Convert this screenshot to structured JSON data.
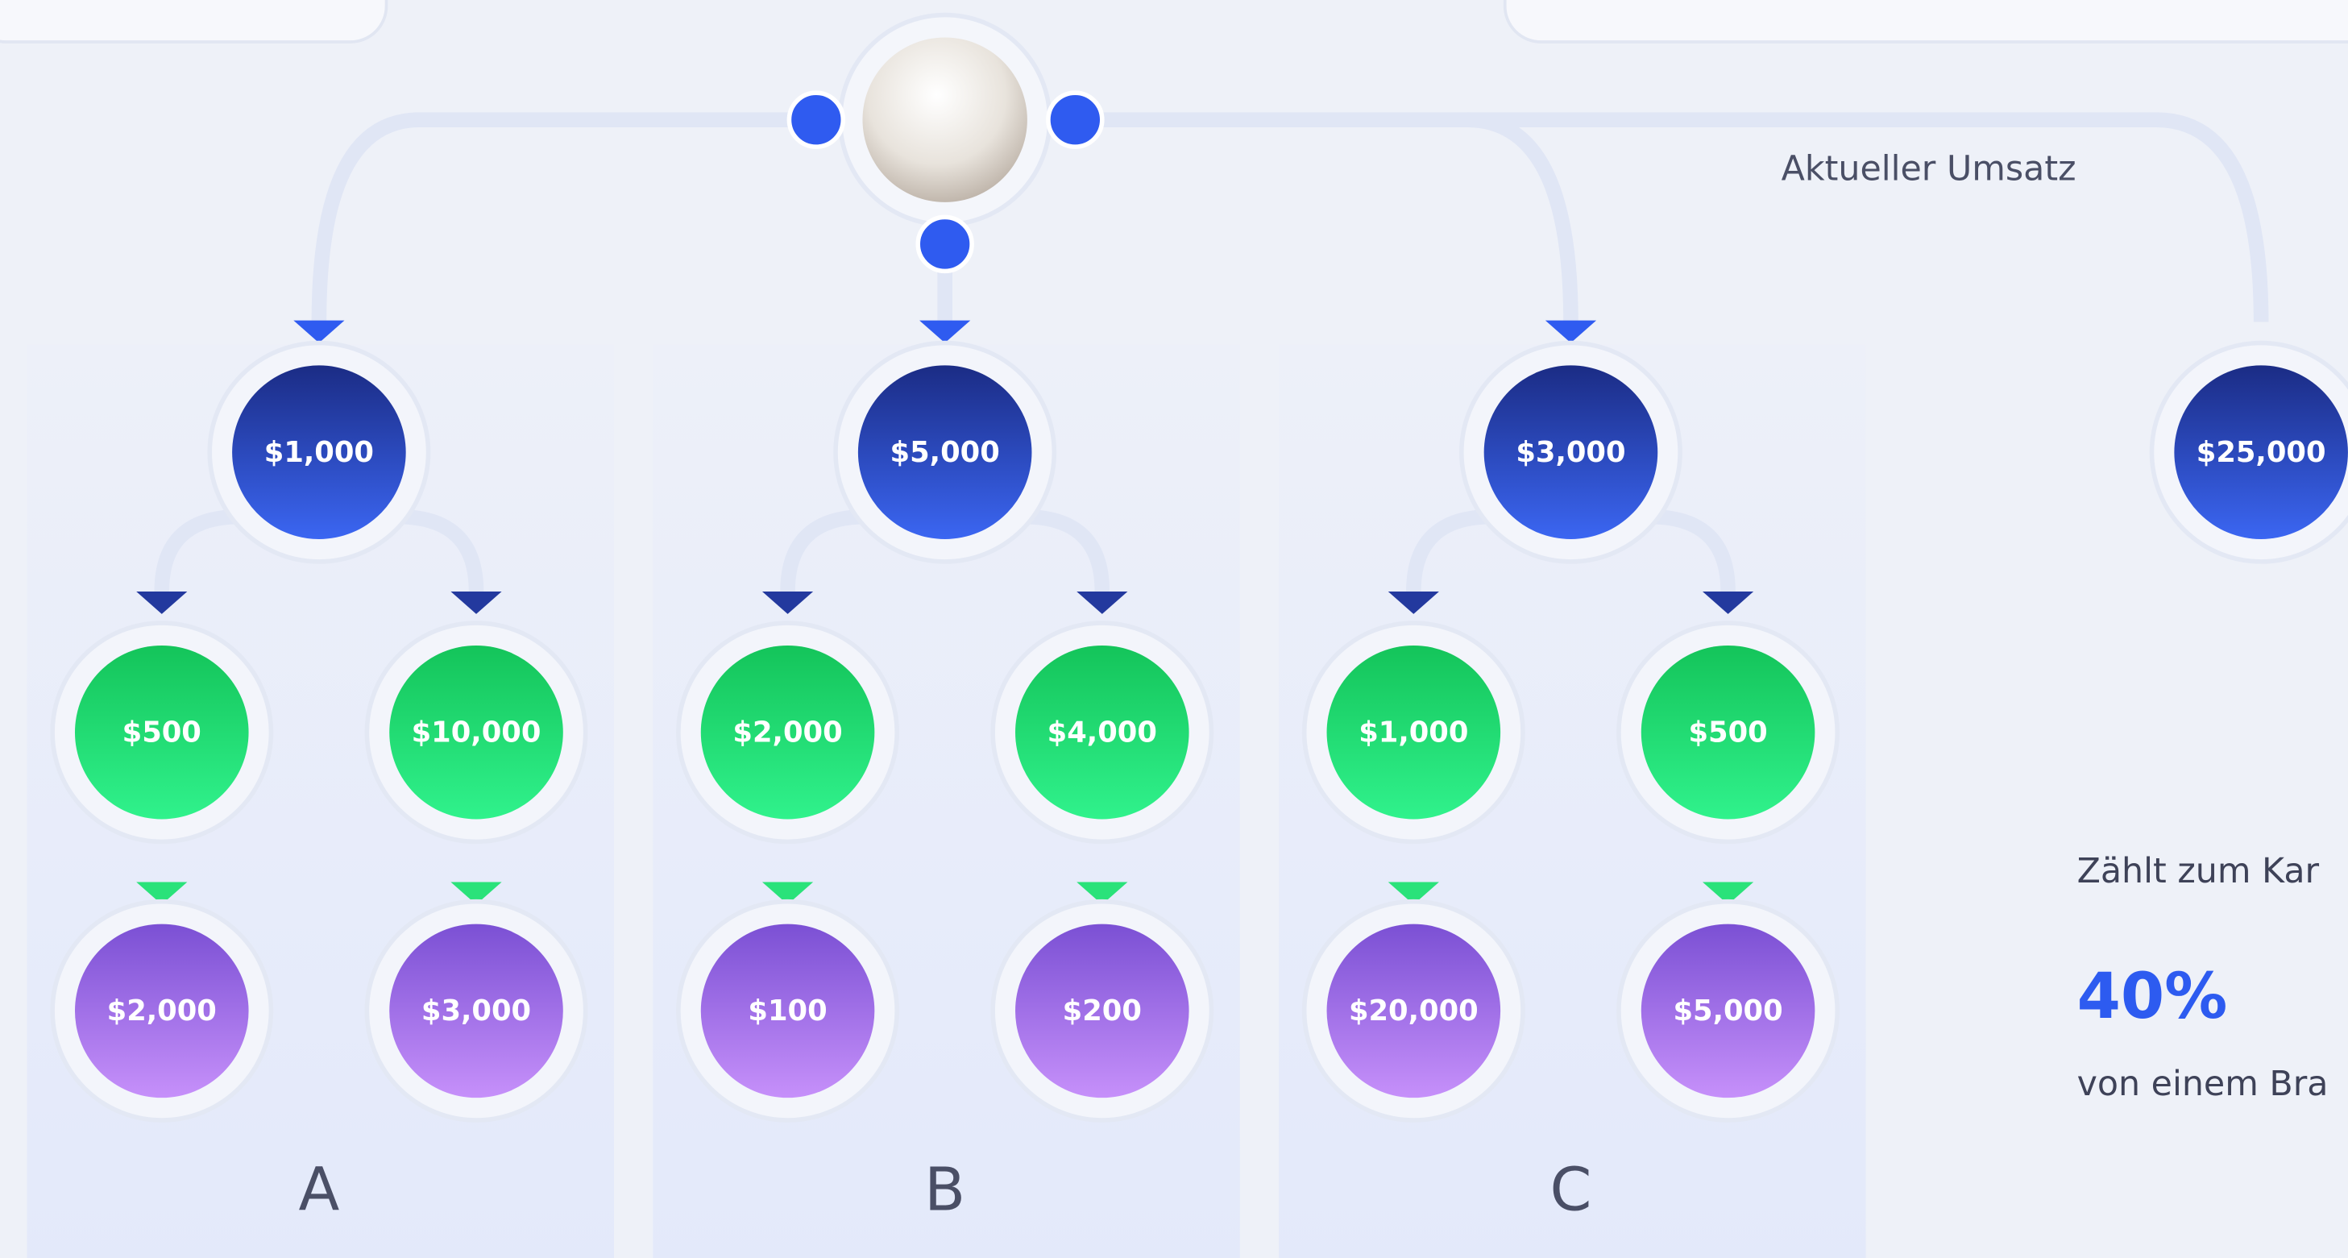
{
  "top_label": "Aktueller Umsatz",
  "groups": [
    {
      "label": "A",
      "root": "$1,000",
      "level2": [
        "$500",
        "$10,000"
      ],
      "level3": [
        "$2,000",
        "$3,000"
      ]
    },
    {
      "label": "B",
      "root": "$5,000",
      "level2": [
        "$2,000",
        "$4,000"
      ],
      "level3": [
        "$100",
        "$200"
      ]
    },
    {
      "label": "C",
      "root": "$3,000",
      "level2": [
        "$1,000",
        "$500"
      ],
      "level3": [
        "$20,000",
        "$5,000"
      ]
    }
  ],
  "extra_root": "$25,000",
  "side": {
    "line1": "Zählt zum Kar",
    "percent": "40%",
    "line2": "von einem Bra"
  }
}
